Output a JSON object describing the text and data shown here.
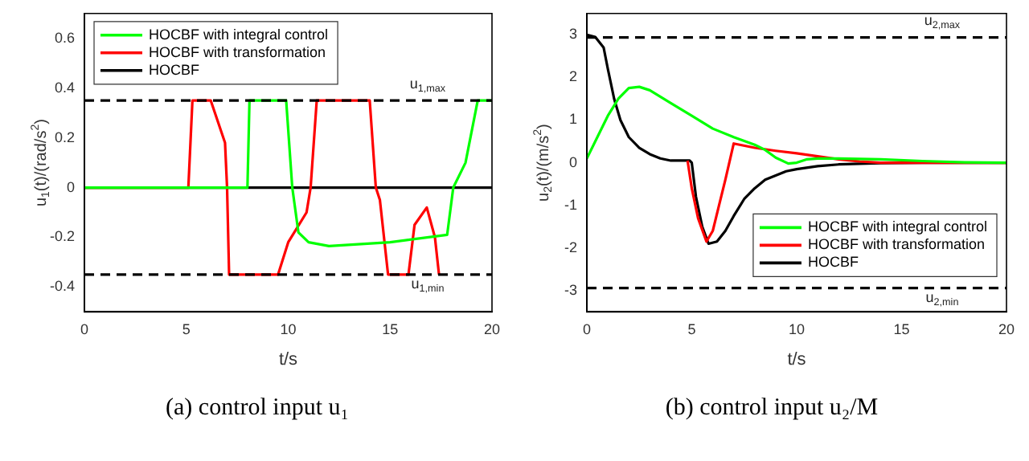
{
  "chart_data": [
    {
      "type": "line",
      "xlabel": "t/s",
      "ylabel": "u$_{1}$(t)/(rad/s$^{2}$)",
      "xlim": [
        0,
        20
      ],
      "xticks": [
        0,
        5,
        10,
        15,
        20
      ],
      "ylim": [
        -0.5,
        0.7
      ],
      "yticks": [
        -0.4,
        -0.2,
        0,
        0.2,
        0.4,
        0.6
      ],
      "legend": "top left",
      "grid": false,
      "annotations": [
        "(a) control input u₁"
      ],
      "ref_lines": [
        {
          "axis": "y",
          "value": 0.35,
          "label": "u$_{1,max}$",
          "color": "#000000",
          "line_style": "dashed"
        },
        {
          "axis": "y",
          "value": -0.35,
          "label": "u$_{1,min}$",
          "color": "#000000",
          "line_style": "dashed"
        }
      ],
      "series": [
        {
          "name": "HOCBF with integral control",
          "color": "#00ff00",
          "x": [
            0,
            8,
            8.1,
            9.9,
            10.2,
            10.5,
            11,
            12,
            15,
            17.8,
            18.1,
            18.7,
            19.3,
            20
          ],
          "values": [
            0,
            0,
            0.35,
            0.35,
            0,
            -0.18,
            -0.22,
            -0.235,
            -0.22,
            -0.19,
            0,
            0.1,
            0.35,
            0.35
          ]
        },
        {
          "name": "HOCBF with transformation",
          "color": "#ff0000",
          "x": [
            0,
            5.1,
            5.3,
            6.2,
            6.9,
            7,
            7.1,
            9.5,
            10,
            10.9,
            11.1,
            11.4,
            14,
            14.3,
            14.5,
            14.9,
            15.9,
            16.2,
            16.8,
            17.2,
            17.4
          ],
          "values": [
            0,
            0,
            0.35,
            0.35,
            0.18,
            0,
            -0.35,
            -0.35,
            -0.22,
            -0.1,
            0,
            0.35,
            0.35,
            0,
            -0.05,
            -0.35,
            -0.35,
            -0.15,
            -0.08,
            -0.2,
            -0.35
          ]
        },
        {
          "name": "HOCBF",
          "color": "#000000",
          "x": [
            0,
            20
          ],
          "values": [
            0,
            0
          ]
        }
      ]
    },
    {
      "type": "line",
      "xlabel": "t/s",
      "ylabel": "u$_{2}$(t)/(m/s$^{2}$)",
      "xlim": [
        0,
        20
      ],
      "xticks": [
        0,
        5,
        10,
        15,
        20
      ],
      "ylim": [
        -3.5,
        3.5
      ],
      "yticks": [
        -3,
        -2,
        -1,
        0,
        1,
        2,
        3
      ],
      "legend": "bottom right",
      "grid": false,
      "annotations": [
        "(b) control input u₂/M"
      ],
      "ref_lines": [
        {
          "axis": "y",
          "value": 2.94,
          "label": "u$_{2,max}$",
          "color": "#000000",
          "line_style": "dashed"
        },
        {
          "axis": "y",
          "value": -2.94,
          "label": "u$_{2,min}$",
          "color": "#000000",
          "line_style": "dashed"
        }
      ],
      "series": [
        {
          "name": "HOCBF with integral control",
          "color": "#00ff00",
          "x": [
            0,
            0.5,
            1,
            1.5,
            2,
            2.5,
            3,
            4,
            5,
            6,
            7,
            8,
            8.5,
            9,
            9.6,
            10,
            10.5,
            11,
            12,
            14,
            16,
            18,
            20
          ],
          "values": [
            0.1,
            0.6,
            1.1,
            1.5,
            1.75,
            1.78,
            1.7,
            1.4,
            1.1,
            0.8,
            0.6,
            0.42,
            0.3,
            0.12,
            -0.02,
            0,
            0.08,
            0.1,
            0.1,
            0.08,
            0.04,
            0.01,
            0
          ]
        },
        {
          "name": "HOCBF with transformation",
          "color": "#ff0000",
          "x": [
            4.8,
            5,
            5.3,
            5.7,
            6,
            6.3,
            6.6,
            7,
            8,
            9,
            10,
            11,
            12,
            13,
            14,
            20
          ],
          "values": [
            0.05,
            -0.6,
            -1.3,
            -1.85,
            -1.6,
            -1,
            -0.4,
            0.45,
            0.35,
            0.28,
            0.22,
            0.15,
            0.08,
            0.03,
            0,
            0
          ]
        },
        {
          "name": "HOCBF",
          "color": "#000000",
          "x": [
            0,
            0.4,
            0.8,
            1,
            1.3,
            1.6,
            2,
            2.5,
            3,
            3.5,
            4,
            4.9,
            5,
            5.2,
            5.5,
            5.8,
            6.2,
            6.6,
            7,
            7.5,
            8,
            8.5,
            9,
            9.5,
            10,
            11,
            12,
            14,
            16,
            20
          ],
          "values": [
            3,
            2.95,
            2.7,
            2.2,
            1.5,
            1,
            0.6,
            0.35,
            0.2,
            0.1,
            0.05,
            0.05,
            0,
            -0.8,
            -1.5,
            -1.9,
            -1.85,
            -1.6,
            -1.25,
            -0.85,
            -0.6,
            -0.4,
            -0.3,
            -0.2,
            -0.15,
            -0.08,
            -0.04,
            -0.01,
            0,
            0
          ]
        }
      ]
    }
  ]
}
